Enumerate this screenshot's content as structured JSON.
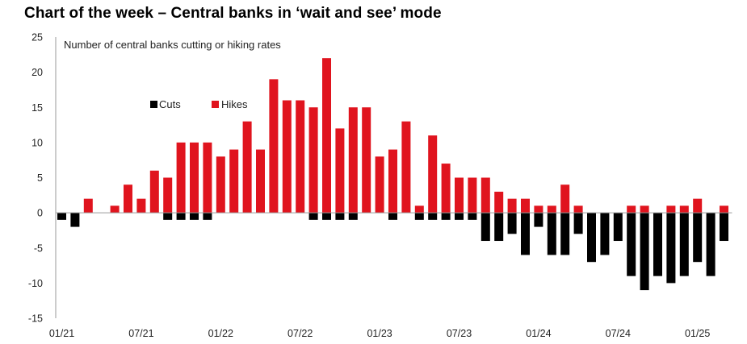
{
  "title": "Chart of the week – Central banks in ‘wait and see’ mode",
  "chart_data": {
    "type": "bar",
    "stacked": true,
    "annotation": "Number of central banks cutting or hiking rates",
    "ylim": [
      -15,
      25
    ],
    "yticks": [
      25,
      20,
      15,
      10,
      5,
      0,
      -5,
      -10,
      -15
    ],
    "xtick_labels": [
      "01/21",
      "07/21",
      "01/22",
      "07/22",
      "01/23",
      "07/23",
      "01/24",
      "07/24",
      "01/25"
    ],
    "xtick_index": [
      0,
      6,
      12,
      18,
      24,
      30,
      36,
      42,
      48
    ],
    "legend": {
      "position": "upper-left-center",
      "entries": [
        "Cuts",
        "Hikes"
      ]
    },
    "grid": false,
    "series": [
      {
        "name": "Cuts",
        "color": "#000000",
        "values": [
          -1,
          -2,
          0,
          0,
          0,
          0,
          0,
          0,
          -1,
          -1,
          -1,
          -1,
          0,
          0,
          0,
          0,
          0,
          0,
          0,
          -1,
          -1,
          -1,
          -1,
          0,
          0,
          -1,
          0,
          -1,
          -1,
          -1,
          -1,
          -1,
          -4,
          -4,
          -3,
          -6,
          -2,
          -6,
          -6,
          -3,
          -7,
          -6,
          -4,
          -9,
          -11,
          -9,
          -10,
          -9,
          -7,
          -9,
          -4
        ]
      },
      {
        "name": "Hikes",
        "color": "#e0141e",
        "values": [
          0,
          0,
          2,
          0,
          1,
          4,
          2,
          6,
          5,
          10,
          10,
          10,
          8,
          9,
          13,
          9,
          19,
          16,
          16,
          15,
          22,
          12,
          15,
          15,
          8,
          9,
          13,
          1,
          11,
          7,
          5,
          5,
          5,
          3,
          2,
          2,
          1,
          1,
          4,
          1,
          0,
          0,
          0,
          1,
          1,
          0,
          1,
          1,
          2,
          0,
          1
        ]
      }
    ]
  }
}
